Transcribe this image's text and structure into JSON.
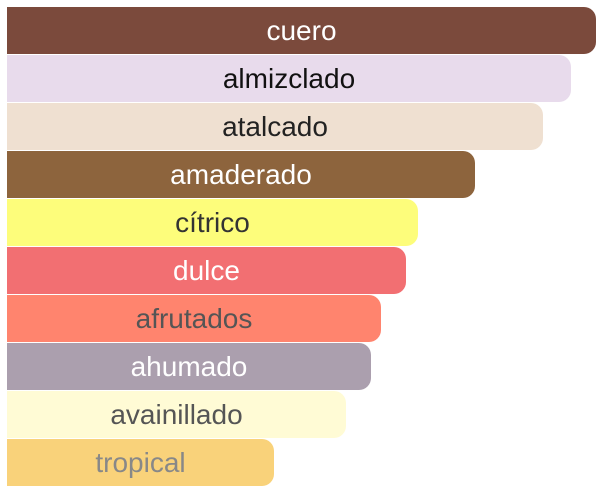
{
  "accords": [
    {
      "label": "cuero",
      "strength": 1.0,
      "color": "#7b4a3c",
      "text_color": "#ffffff"
    },
    {
      "label": "almizclado",
      "strength": 0.958,
      "color": "#e8dbec",
      "text_color": "#111111"
    },
    {
      "label": "atalcado",
      "strength": 0.91,
      "color": "#efe0d1",
      "text_color": "#222222"
    },
    {
      "label": "amaderado",
      "strength": 0.795,
      "color": "#8d643d",
      "text_color": "#ffffff"
    },
    {
      "label": "cítrico",
      "strength": 0.698,
      "color": "#fdfd7b",
      "text_color": "#333333"
    },
    {
      "label": "dulce",
      "strength": 0.677,
      "color": "#f26f72",
      "text_color": "#ffffff"
    },
    {
      "label": "afrutados",
      "strength": 0.635,
      "color": "#ff846e",
      "text_color": "#555555"
    },
    {
      "label": "ahumado",
      "strength": 0.618,
      "color": "#ab9fae",
      "text_color": "#ffffff"
    },
    {
      "label": "avainillado",
      "strength": 0.576,
      "color": "#fffbd5",
      "text_color": "#555555"
    },
    {
      "label": "tropical",
      "strength": 0.453,
      "color": "#f9d27a",
      "text_color": "#888888"
    }
  ]
}
